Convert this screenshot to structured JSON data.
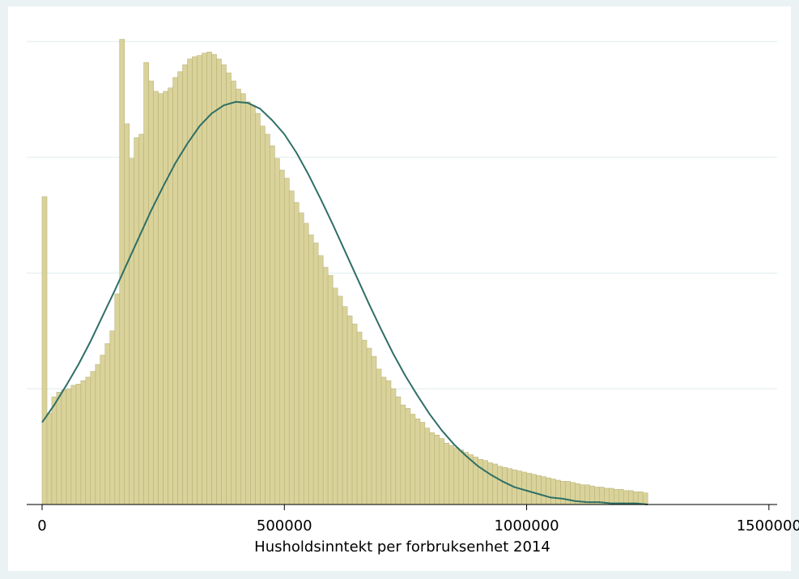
{
  "chart_data": {
    "type": "histogram",
    "xlabel": "Husholdsinntekt per forbruksenhet 2014",
    "bins": [
      0,
      10000,
      20000,
      30000,
      40000,
      50000,
      60000,
      70000,
      80000,
      90000,
      100000,
      110000,
      120000,
      130000,
      140000,
      150000,
      160000,
      170000,
      180000,
      190000,
      200000,
      210000,
      220000,
      230000,
      240000,
      250000,
      260000,
      270000,
      280000,
      290000,
      300000,
      310000,
      320000,
      330000,
      340000,
      350000,
      360000,
      370000,
      380000,
      390000,
      400000,
      410000,
      420000,
      430000,
      440000,
      450000,
      460000,
      470000,
      480000,
      490000,
      500000,
      510000,
      520000,
      530000,
      540000,
      550000,
      560000,
      570000,
      580000,
      590000,
      600000,
      610000,
      620000,
      630000,
      640000,
      650000,
      660000,
      670000,
      680000,
      690000,
      700000,
      710000,
      720000,
      730000,
      740000,
      750000,
      760000,
      770000,
      780000,
      790000,
      800000,
      810000,
      820000,
      830000,
      840000,
      850000,
      860000,
      870000,
      880000,
      890000,
      900000,
      910000,
      920000,
      930000,
      940000,
      950000,
      960000,
      970000,
      980000,
      990000,
      1000000,
      1010000,
      1020000,
      1030000,
      1040000,
      1050000,
      1060000,
      1070000,
      1080000,
      1090000,
      1100000,
      1110000,
      1120000,
      1130000,
      1140000,
      1150000,
      1160000,
      1170000,
      1180000,
      1190000,
      1200000,
      1210000,
      1220000,
      1230000,
      1240000,
      1250000
    ],
    "values": [
      2.66,
      0.79,
      0.93,
      0.97,
      0.99,
      1.0,
      1.03,
      1.04,
      1.07,
      1.1,
      1.15,
      1.21,
      1.29,
      1.39,
      1.5,
      1.82,
      4.02,
      3.29,
      2.99,
      3.17,
      3.2,
      3.82,
      3.66,
      3.57,
      3.55,
      3.57,
      3.6,
      3.69,
      3.74,
      3.8,
      3.85,
      3.87,
      3.88,
      3.9,
      3.91,
      3.89,
      3.85,
      3.8,
      3.73,
      3.66,
      3.59,
      3.55,
      3.48,
      3.45,
      3.38,
      3.27,
      3.2,
      3.1,
      2.99,
      2.89,
      2.82,
      2.71,
      2.61,
      2.52,
      2.43,
      2.33,
      2.26,
      2.15,
      2.05,
      1.98,
      1.87,
      1.8,
      1.71,
      1.63,
      1.56,
      1.49,
      1.42,
      1.35,
      1.28,
      1.17,
      1.1,
      1.07,
      1.0,
      0.93,
      0.86,
      0.83,
      0.78,
      0.74,
      0.71,
      0.66,
      0.62,
      0.6,
      0.57,
      0.53,
      0.51,
      0.49,
      0.47,
      0.45,
      0.43,
      0.41,
      0.39,
      0.38,
      0.36,
      0.35,
      0.33,
      0.32,
      0.31,
      0.3,
      0.29,
      0.28,
      0.27,
      0.26,
      0.25,
      0.24,
      0.23,
      0.22,
      0.21,
      0.2,
      0.2,
      0.19,
      0.18,
      0.17,
      0.17,
      0.16,
      0.15,
      0.15,
      0.14,
      0.14,
      0.13,
      0.13,
      0.12,
      0.12,
      0.11,
      0.11,
      0.1
    ],
    "color": "#d9d39b",
    "edge_color": "#b9b276",
    "overlay": {
      "type": "line",
      "color": "#2f6f66",
      "x": [
        0,
        25000,
        50000,
        75000,
        100000,
        125000,
        150000,
        175000,
        200000,
        225000,
        250000,
        275000,
        300000,
        325000,
        350000,
        375000,
        400000,
        425000,
        450000,
        475000,
        500000,
        525000,
        550000,
        575000,
        600000,
        625000,
        650000,
        675000,
        700000,
        725000,
        750000,
        775000,
        800000,
        825000,
        850000,
        875000,
        900000,
        925000,
        950000,
        975000,
        1000000,
        1025000,
        1050000,
        1075000,
        1100000,
        1125000,
        1150000,
        1175000,
        1200000,
        1225000,
        1250000
      ],
      "values": [
        0.71,
        0.86,
        1.03,
        1.21,
        1.41,
        1.63,
        1.85,
        2.08,
        2.31,
        2.54,
        2.75,
        2.95,
        3.12,
        3.27,
        3.38,
        3.45,
        3.48,
        3.47,
        3.42,
        3.32,
        3.2,
        3.04,
        2.85,
        2.64,
        2.42,
        2.19,
        1.96,
        1.73,
        1.51,
        1.3,
        1.11,
        0.94,
        0.78,
        0.64,
        0.52,
        0.42,
        0.33,
        0.26,
        0.2,
        0.15,
        0.12,
        0.09,
        0.06,
        0.05,
        0.03,
        0.02,
        0.02,
        0.01,
        0.01,
        0.01,
        0.0
      ]
    },
    "xlim": [
      -31750,
      1517000
    ],
    "xticks": [
      0,
      500000,
      1000000,
      1500000
    ],
    "ylim": [
      0,
      4.22
    ],
    "yticks": [
      0,
      1,
      2,
      3,
      4
    ],
    "show_ytick_labels": false,
    "grid": true
  }
}
